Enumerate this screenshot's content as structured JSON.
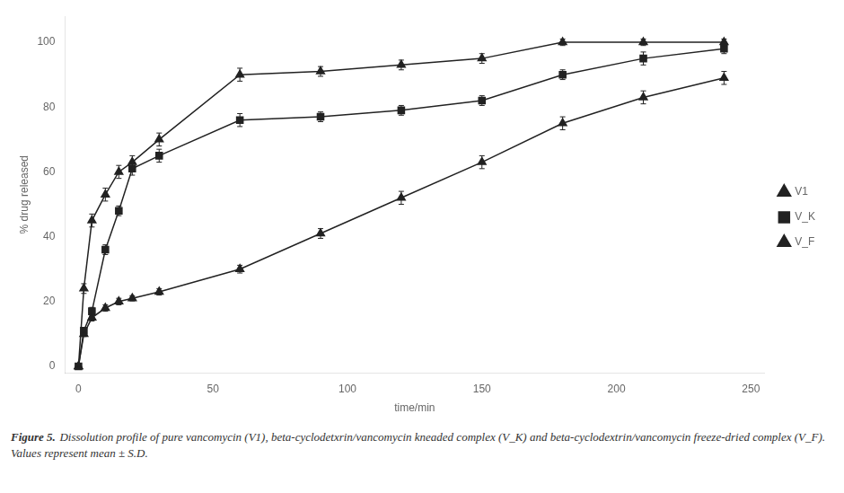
{
  "chart_data": {
    "type": "line",
    "xlabel": "time/min",
    "ylabel": "% drug released",
    "xlim": [
      -5,
      255
    ],
    "ylim": [
      -2,
      108
    ],
    "xticks": [
      0,
      50,
      100,
      150,
      200,
      250
    ],
    "yticks": [
      0,
      20,
      40,
      60,
      80,
      100
    ],
    "grid": false,
    "legend": "right",
    "annotations": [
      "Figure 5.",
      "Dissolution profile of pure vancomycin (V1), beta-cyclodetxrin/vancomycin kneaded complex (V_K) and beta-cyclodextrin/vancomycin freeze-dried complex (V_F). Values represent mean ± S.D."
    ],
    "x": [
      0,
      2,
      5,
      10,
      15,
      20,
      30,
      60,
      90,
      120,
      150,
      180,
      210,
      240
    ],
    "series": [
      {
        "name": "V1",
        "color": "#222222",
        "marker": "triangle",
        "line_style": "solid",
        "values": [
          0,
          10,
          15,
          18,
          20,
          21,
          23,
          30,
          41,
          52,
          63,
          75,
          83,
          89
        ],
        "yerr": [
          0.3,
          0.8,
          1.0,
          1.0,
          1.0,
          0.8,
          1.0,
          1.2,
          1.5,
          2.0,
          2.0,
          2.0,
          2.0,
          2.0
        ]
      },
      {
        "name": "V_K",
        "color": "#222222",
        "marker": "square",
        "line_style": "solid",
        "values": [
          0,
          11,
          17,
          36,
          48,
          61,
          65,
          76,
          77,
          79,
          82,
          90,
          95,
          98
        ],
        "yerr": [
          0.3,
          0.8,
          1.2,
          1.5,
          1.5,
          2.0,
          2.0,
          2.0,
          1.5,
          1.5,
          1.5,
          1.5,
          2.0,
          1.5
        ]
      },
      {
        "name": "V_F",
        "color": "#222222",
        "marker": "triangle",
        "line_style": "solid",
        "values": [
          0,
          24,
          45,
          53,
          60,
          63,
          70,
          90,
          91,
          93,
          95,
          100,
          100,
          100
        ],
        "yerr": [
          0.3,
          1.5,
          2.0,
          2.0,
          2.0,
          2.0,
          2.0,
          2.0,
          1.5,
          1.5,
          1.5,
          1.0,
          1.0,
          1.0
        ]
      }
    ]
  }
}
